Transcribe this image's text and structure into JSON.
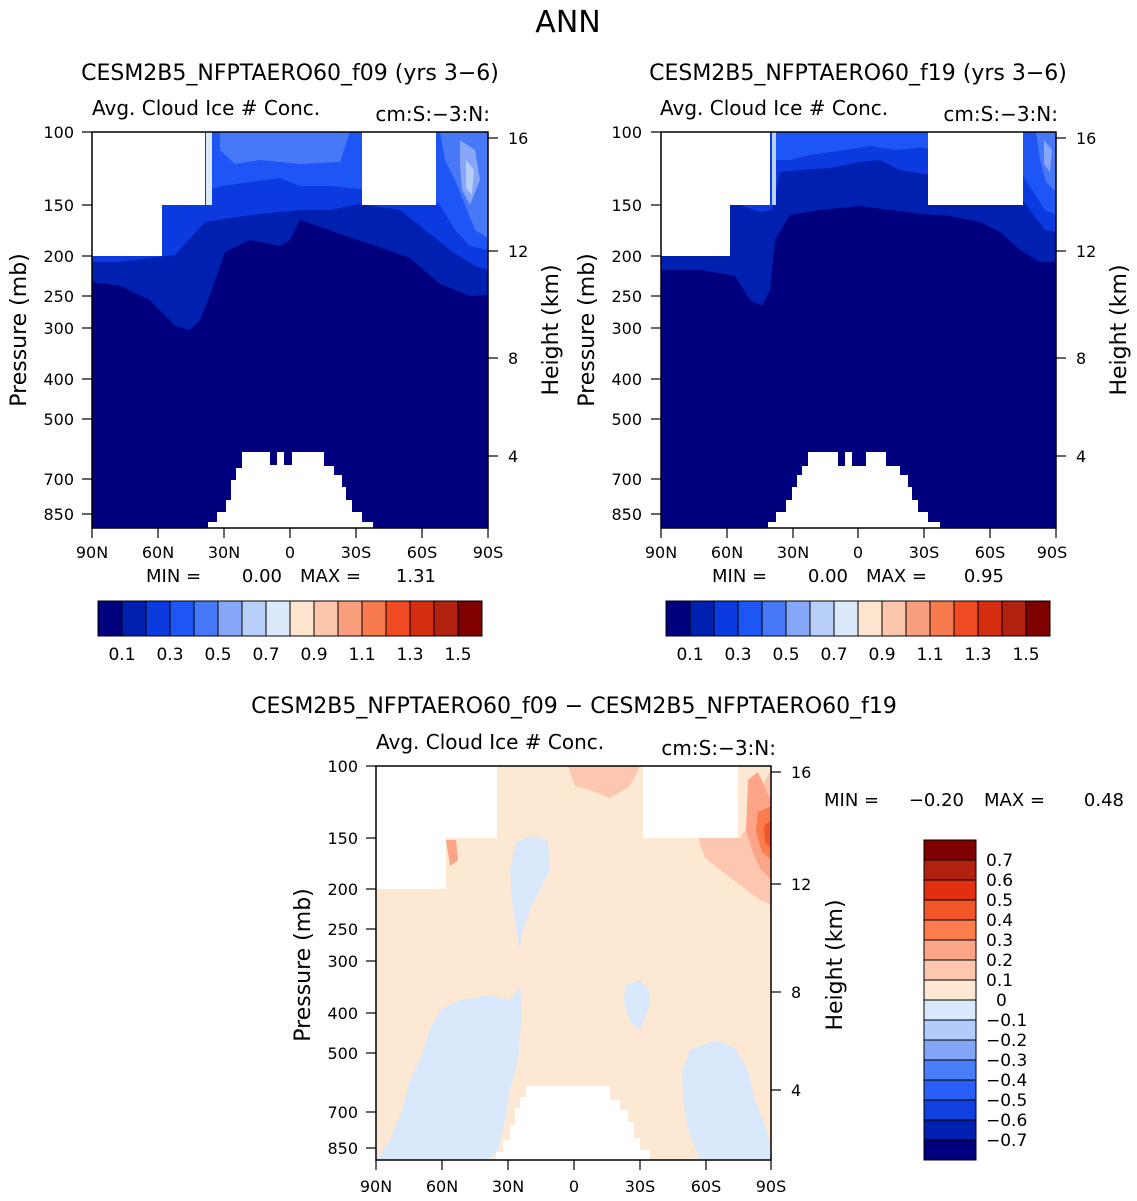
{
  "page_title": "ANN",
  "chart_data": [
    {
      "type": "heatmap",
      "title": "CESM2B5_NFPTAERO60_f09 (yrs 3−6)",
      "variable": "Avg. Cloud Ice # Conc.",
      "units": "cm:S:−3:N:",
      "xlabel": "",
      "ylabel": "Pressure (mb)",
      "ylabel_right": "Height (km)",
      "x_ticks": [
        "90N",
        "60N",
        "30N",
        "0",
        "30S",
        "60S",
        "90S"
      ],
      "y_ticks": [
        100,
        150,
        200,
        250,
        300,
        400,
        500,
        700,
        850
      ],
      "right_ticks": [
        16,
        12,
        8,
        4
      ],
      "stats": {
        "min_label": "MIN =",
        "min": "0.00",
        "max_label": "MAX =",
        "max": "1.31"
      },
      "colorbar_labels": [
        "0.1",
        "0.3",
        "0.5",
        "0.7",
        "0.9",
        "1.1",
        "1.3",
        "1.5"
      ]
    },
    {
      "type": "heatmap",
      "title": "CESM2B5_NFPTAERO60_f19 (yrs 3−6)",
      "variable": "Avg. Cloud Ice # Conc.",
      "units": "cm:S:−3:N:",
      "xlabel": "",
      "ylabel": "Pressure (mb)",
      "ylabel_right": "Height (km)",
      "x_ticks": [
        "90N",
        "60N",
        "30N",
        "0",
        "30S",
        "60S",
        "90S"
      ],
      "y_ticks": [
        100,
        150,
        200,
        250,
        300,
        400,
        500,
        700,
        850
      ],
      "right_ticks": [
        16,
        12,
        8,
        4
      ],
      "stats": {
        "min_label": "MIN =",
        "min": "0.00",
        "max_label": "MAX =",
        "max": "0.95"
      },
      "colorbar_labels": [
        "0.1",
        "0.3",
        "0.5",
        "0.7",
        "0.9",
        "1.1",
        "1.3",
        "1.5"
      ]
    },
    {
      "type": "heatmap",
      "title": "CESM2B5_NFPTAERO60_f09 − CESM2B5_NFPTAERO60_f19",
      "variable": "Avg. Cloud Ice # Conc.",
      "units": "cm:S:−3:N:",
      "xlabel": "",
      "ylabel": "Pressure (mb)",
      "ylabel_right": "Height (km)",
      "x_ticks": [
        "90N",
        "60N",
        "30N",
        "0",
        "30S",
        "60S",
        "90S"
      ],
      "y_ticks": [
        100,
        150,
        200,
        250,
        300,
        400,
        500,
        700,
        850
      ],
      "right_ticks": [
        16,
        12,
        8,
        4
      ],
      "stats": {
        "min_label": "MIN =",
        "min": "−0.20",
        "max_label": "MAX =",
        "max": "0.48"
      },
      "colorbar_labels": [
        "0.7",
        "0.6",
        "0.5",
        "0.4",
        "0.3",
        "0.2",
        "0.1",
        "0",
        "−0.1",
        "−0.2",
        "−0.3",
        "−0.4",
        "−0.5",
        "−0.6",
        "−0.7"
      ]
    }
  ],
  "colors": {
    "abs_scale": [
      "#00007f",
      "#0020b0",
      "#0a3ae0",
      "#1e55f5",
      "#4678f7",
      "#86a6f8",
      "#b8cffa",
      "#dbe9fb",
      "#fde5d0",
      "#fcc6ac",
      "#fa9f7d",
      "#f77a4f",
      "#f04b23",
      "#d52d10",
      "#b2200f",
      "#800000"
    ],
    "diff_scale": [
      "#800000",
      "#b2200f",
      "#e03010",
      "#f25528",
      "#fb7d4e",
      "#fba487",
      "#fcc7ae",
      "#fde8d3",
      "#d9e8fb",
      "#b3cbfa",
      "#82a5f7",
      "#4a7ef7",
      "#2a5ef5",
      "#1040e0",
      "#0020b0",
      "#00007f"
    ]
  }
}
